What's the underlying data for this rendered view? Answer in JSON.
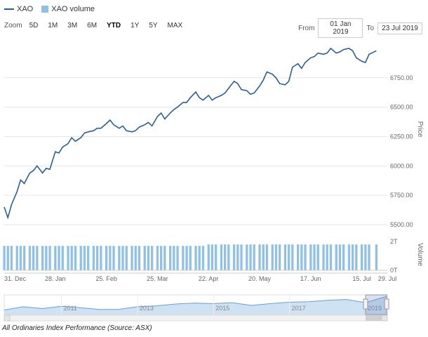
{
  "legend": {
    "items": [
      {
        "label": "XAO"
      },
      {
        "label": "XAO volume"
      }
    ]
  },
  "zoom": {
    "label": "Zoom",
    "buttons": [
      "5D",
      "1M",
      "3M",
      "6M",
      "YTD",
      "1Y",
      "5Y",
      "MAX"
    ],
    "selected": "YTD"
  },
  "range": {
    "from_label": "From",
    "from_value": "01 Jan 2019",
    "to_label": "To",
    "to_value": "23 Jul 2019"
  },
  "caption": "All Ordinaries Index Performance (Source: ASX)",
  "colors": {
    "price_line": "#2b5d9b",
    "volume_bars": "#8ec0e8",
    "navigator_fill": "#cfe2f3",
    "navigator_line": "#6a9fd0"
  },
  "chart_data": {
    "type": "line",
    "series": [
      {
        "name": "XAO",
        "x": [
          "2018-12-31",
          "2019-01-02",
          "2019-01-04",
          "2019-01-07",
          "2019-01-09",
          "2019-01-11",
          "2019-01-14",
          "2019-01-16",
          "2019-01-18",
          "2019-01-21",
          "2019-01-23",
          "2019-01-25",
          "2019-01-28",
          "2019-01-30",
          "2019-02-01",
          "2019-02-04",
          "2019-02-06",
          "2019-02-08",
          "2019-02-11",
          "2019-02-13",
          "2019-02-15",
          "2019-02-18",
          "2019-02-20",
          "2019-02-22",
          "2019-02-25",
          "2019-02-27",
          "2019-03-01",
          "2019-03-04",
          "2019-03-06",
          "2019-03-08",
          "2019-03-11",
          "2019-03-13",
          "2019-03-15",
          "2019-03-18",
          "2019-03-20",
          "2019-03-22",
          "2019-03-25",
          "2019-03-27",
          "2019-03-29",
          "2019-04-01",
          "2019-04-03",
          "2019-04-05",
          "2019-04-08",
          "2019-04-10",
          "2019-04-12",
          "2019-04-15",
          "2019-04-17",
          "2019-04-19",
          "2019-04-22",
          "2019-04-24",
          "2019-04-26",
          "2019-04-29",
          "2019-05-01",
          "2019-05-03",
          "2019-05-06",
          "2019-05-08",
          "2019-05-10",
          "2019-05-13",
          "2019-05-15",
          "2019-05-17",
          "2019-05-20",
          "2019-05-22",
          "2019-05-24",
          "2019-05-27",
          "2019-05-29",
          "2019-05-31",
          "2019-06-03",
          "2019-06-05",
          "2019-06-07",
          "2019-06-10",
          "2019-06-12",
          "2019-06-14",
          "2019-06-17",
          "2019-06-19",
          "2019-06-21",
          "2019-06-24",
          "2019-06-26",
          "2019-06-28",
          "2019-07-01",
          "2019-07-03",
          "2019-07-05",
          "2019-07-08",
          "2019-07-10",
          "2019-07-12",
          "2019-07-15",
          "2019-07-17",
          "2019-07-19",
          "2019-07-23"
        ],
        "values": [
          5650,
          5560,
          5670,
          5780,
          5880,
          5850,
          5940,
          5960,
          6000,
          5940,
          5980,
          5970,
          6120,
          6110,
          6160,
          6190,
          6240,
          6210,
          6240,
          6280,
          6290,
          6300,
          6320,
          6320,
          6360,
          6390,
          6350,
          6320,
          6340,
          6300,
          6290,
          6300,
          6330,
          6350,
          6370,
          6340,
          6420,
          6450,
          6400,
          6450,
          6480,
          6500,
          6540,
          6540,
          6580,
          6630,
          6580,
          6560,
          6600,
          6560,
          6580,
          6600,
          6620,
          6660,
          6720,
          6700,
          6650,
          6640,
          6610,
          6620,
          6680,
          6730,
          6800,
          6780,
          6750,
          6700,
          6690,
          6720,
          6840,
          6870,
          6830,
          6880,
          6920,
          6930,
          6960,
          6950,
          6960,
          7000,
          6960,
          6970,
          6990,
          7000,
          6980,
          6920,
          6890,
          6880,
          6950,
          6980
        ]
      },
      {
        "name": "XAO volume",
        "values": [
          1.7,
          1.7,
          1.7,
          1.7,
          1.7,
          1.7,
          1.7,
          1.7,
          1.7,
          1.7,
          1.7,
          1.7,
          1.7,
          1.7,
          1.7,
          1.7,
          1.7,
          1.7,
          1.7,
          1.7,
          1.7,
          1.7,
          1.7,
          1.7,
          1.7,
          1.7,
          1.7,
          1.7,
          1.7,
          1.7,
          1.7,
          1.7,
          1.7,
          1.7,
          1.7,
          1.7,
          1.7,
          1.7,
          1.7,
          1.7,
          1.7,
          1.7,
          1.7,
          1.7,
          1.7,
          1.7,
          1.7,
          1.7,
          1.8,
          1.8,
          1.8,
          1.8,
          1.8,
          1.8,
          1.8,
          1.8,
          1.8,
          1.8,
          1.8,
          1.8,
          1.8,
          1.8,
          1.8,
          1.8,
          1.8,
          1.8,
          1.8,
          1.8,
          1.8,
          1.8,
          1.8,
          1.8,
          1.8,
          1.8,
          1.8,
          1.8,
          1.8,
          1.8,
          1.8,
          1.8,
          1.8,
          1.8,
          1.8,
          1.8,
          1.8,
          1.8,
          1.8,
          1.8
        ]
      }
    ],
    "x_range": [
      "2018-12-31",
      "2019-07-29"
    ],
    "x_ticks": [
      "31. Dec",
      "28. Jan",
      "25. Feb",
      "25. Mar",
      "22. Apr",
      "20. May",
      "17. Jun",
      "15. Jul",
      "29. Jul"
    ],
    "x_tick_dates": [
      "2018-12-31",
      "2019-01-28",
      "2019-02-25",
      "2019-03-25",
      "2019-04-22",
      "2019-05-20",
      "2019-06-17",
      "2019-07-15",
      "2019-07-29"
    ],
    "price_axis": {
      "label": "Price",
      "ylim": [
        5500,
        7125
      ],
      "ticks": [
        5500,
        5750,
        6000,
        6250,
        6500,
        6750
      ],
      "tick_labels": [
        "5500.00",
        "5750.00",
        "6000.00",
        "6250.00",
        "6500.00",
        "6750.00"
      ]
    },
    "volume_axis": {
      "label": "Volume",
      "ylim": [
        0,
        2.2
      ],
      "ticks": [
        0,
        2
      ],
      "tick_labels": [
        "0T",
        "2T"
      ]
    },
    "navigator": {
      "year_labels": [
        "2011",
        "2013",
        "2015",
        "2017",
        "2019"
      ],
      "year_label_dates": [
        "2011-01-01",
        "2013-01-01",
        "2015-01-01",
        "2017-01-01",
        "2019-01-01"
      ],
      "x_range": [
        "2009-07-01",
        "2019-07-29"
      ],
      "selected_range": [
        "2019-01-01",
        "2019-07-23"
      ],
      "series": [
        {
          "x": [
            "2009-07-01",
            "2010-01-01",
            "2010-07-01",
            "2011-01-01",
            "2011-07-01",
            "2012-01-01",
            "2012-07-01",
            "2013-01-01",
            "2013-07-01",
            "2014-01-01",
            "2014-07-01",
            "2015-01-01",
            "2015-07-01",
            "2016-01-01",
            "2016-07-01",
            "2017-01-01",
            "2017-07-01",
            "2018-01-01",
            "2018-07-01",
            "2019-01-01",
            "2019-07-23"
          ],
          "values": [
            4000,
            4700,
            4300,
            4800,
            4500,
            4100,
            4100,
            4700,
            4900,
            5300,
            5500,
            5400,
            5600,
            5000,
            5400,
            5700,
            5800,
            6100,
            6300,
            5600,
            6980
          ]
        }
      ],
      "ylim": [
        3000,
        7300
      ]
    }
  }
}
